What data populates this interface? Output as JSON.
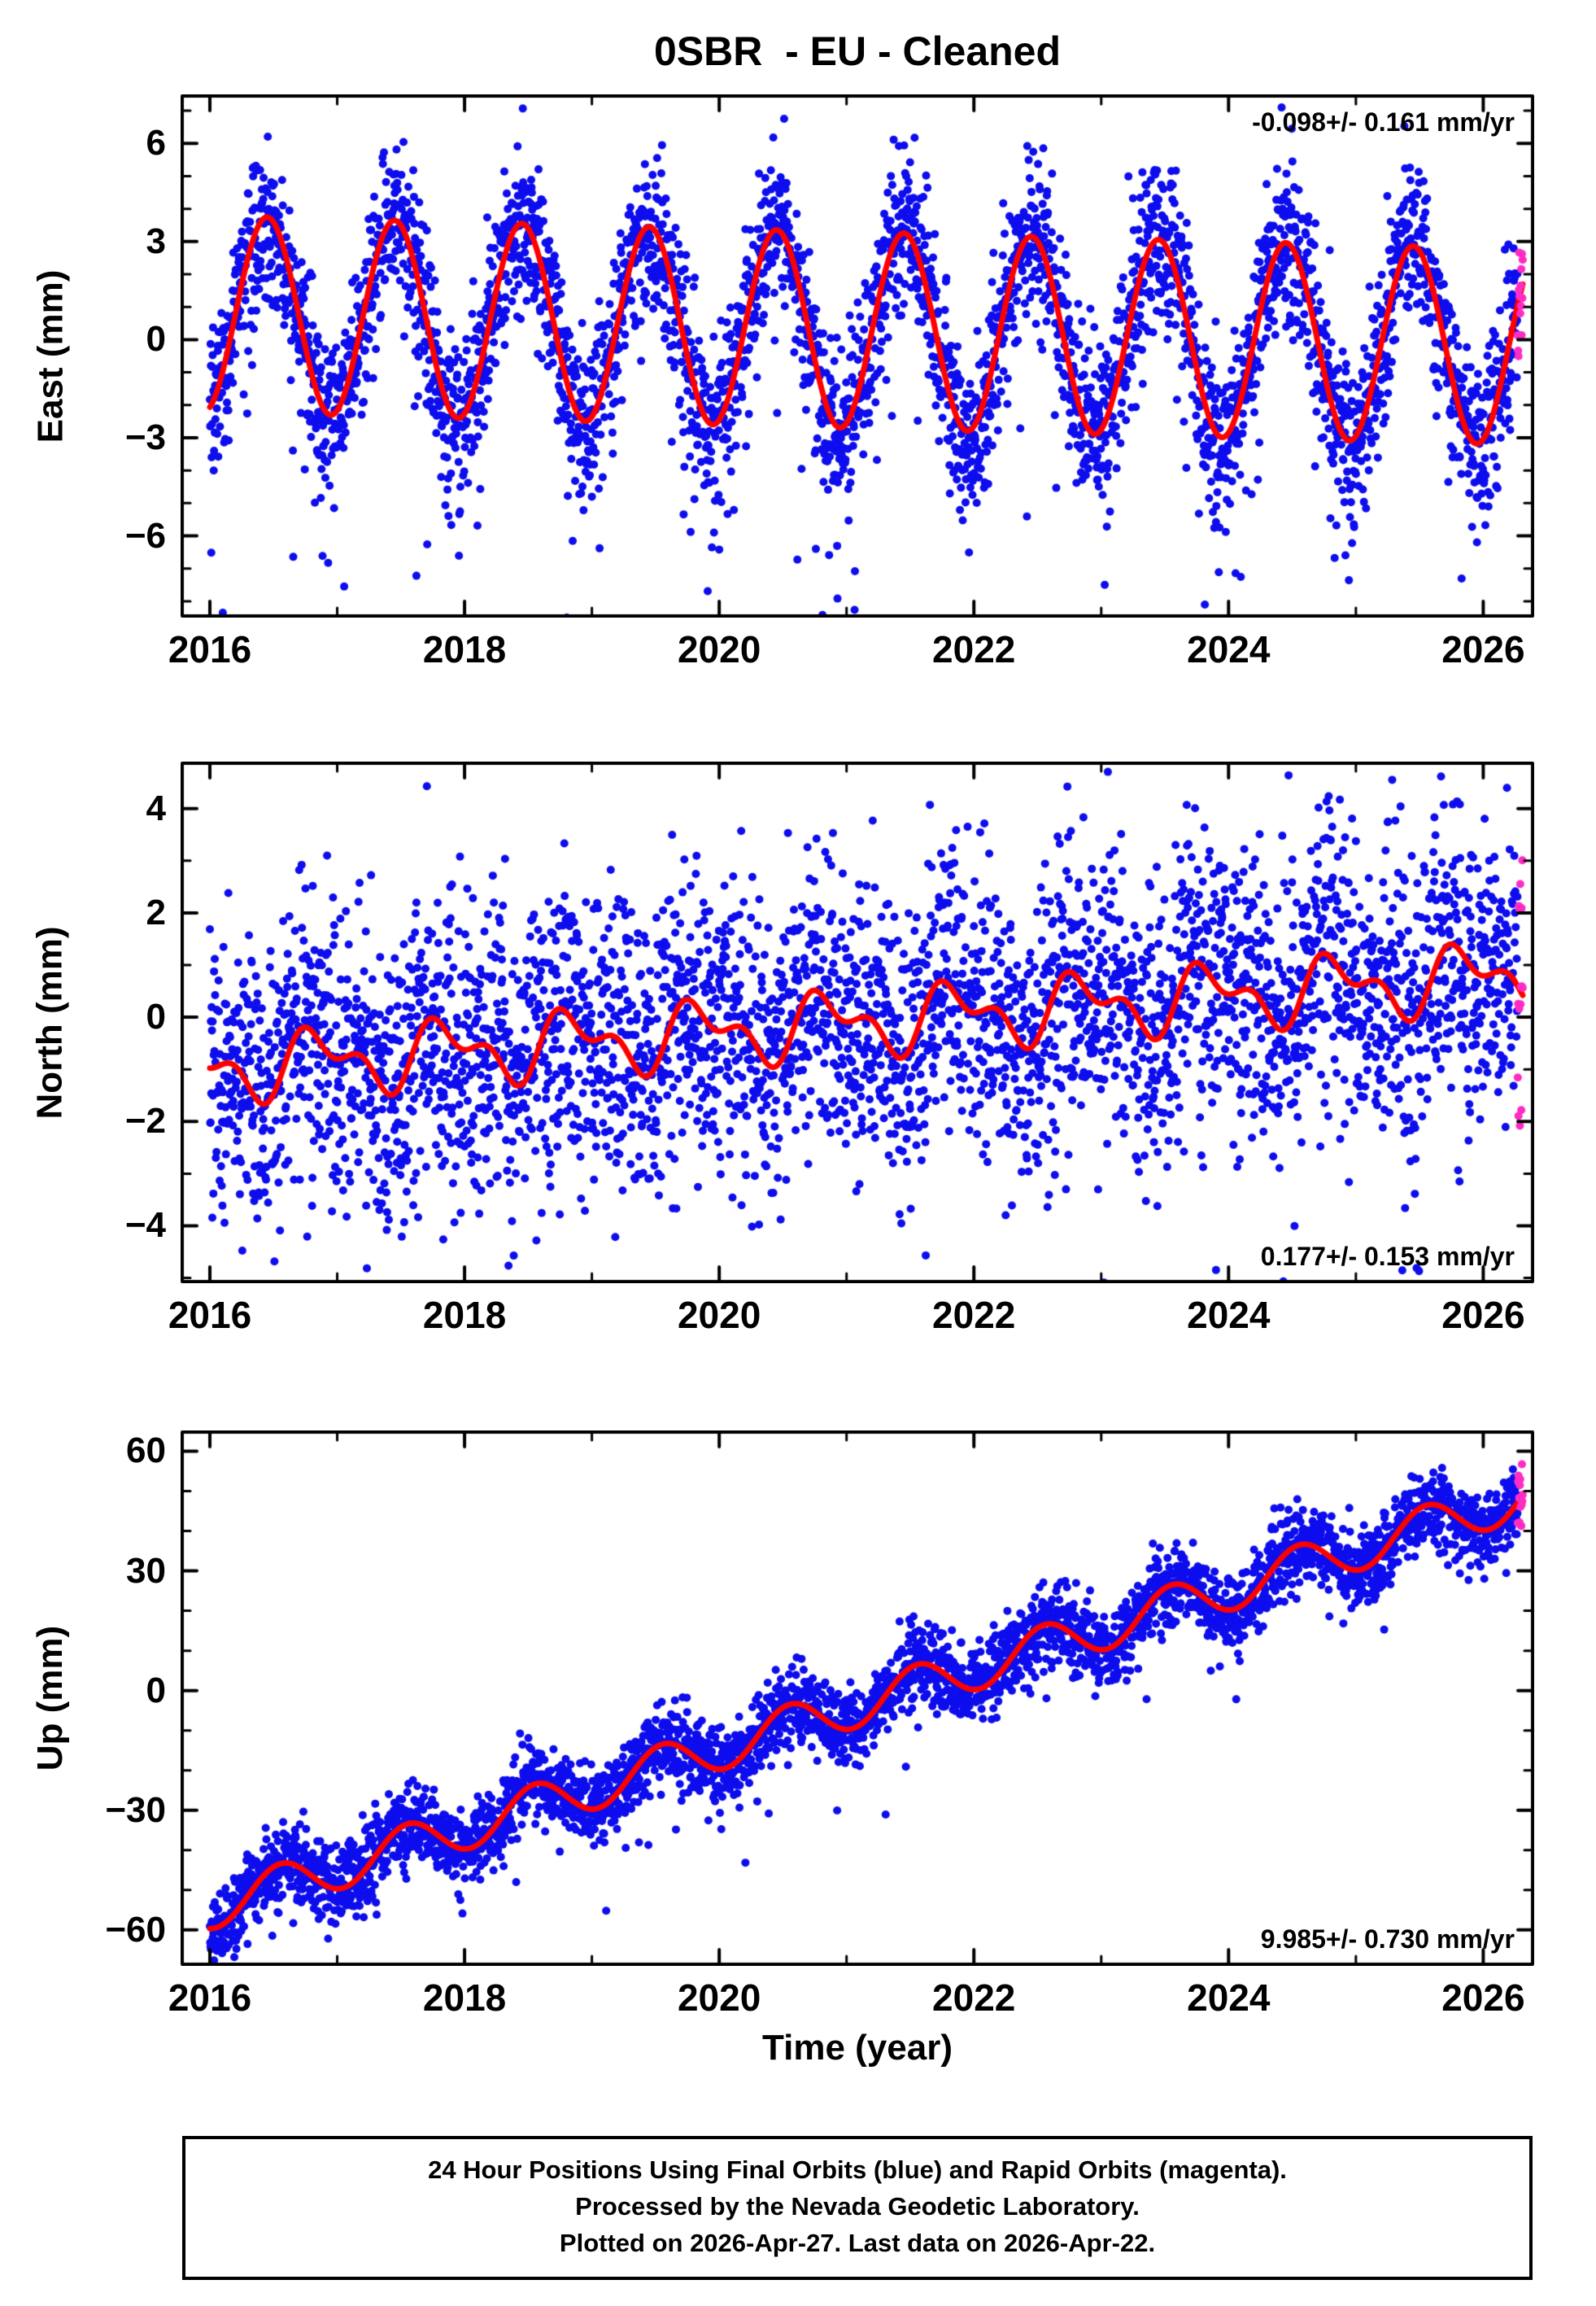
{
  "title": "0SBR  - EU - Cleaned",
  "xlabel": "Time (year)",
  "colors": {
    "final_orbit_blue": "#0d0dee",
    "rapid_orbit_magenta": "#ff2cc3",
    "model_red": "#ff0000",
    "frame_black": "#000000"
  },
  "x_range": [
    2015.77,
    2026.4
  ],
  "x_ticks": [
    2016,
    2018,
    2020,
    2022,
    2024,
    2026
  ],
  "x_tick_minor": 1,
  "sampling": {
    "start": 2016.0,
    "end": 2026.31,
    "rapid_start": 2026.27,
    "samples_per_year": 365
  },
  "chart_data": [
    {
      "type": "scatter",
      "panel": "east",
      "ylabel": "East (mm)",
      "ylim": [
        -8.5,
        7.5
      ],
      "yticks": [
        -6,
        -3,
        0,
        3,
        6
      ],
      "ytick_minor": 1,
      "annotation": "-0.098+/- 0.161 mm/yr",
      "annotation_position": "top-right",
      "trend_mm_per_yr": -0.098,
      "trend_uncertainty_mm_per_yr": 0.161,
      "model": {
        "intercept": 0.3,
        "ref_year": 2021,
        "trend": -0.098,
        "annual_amp": 3.0,
        "annual_phase": 2016.2,
        "semi_amp": 0,
        "semi_phase": 0
      },
      "noise": {
        "sigma": 1.25,
        "outlier_rate": 0.045,
        "outlier_scale": 2.0,
        "outlier_bias": -0.9,
        "winter_tail": 3.0,
        "winter_tail_rate": 0.06
      },
      "seed": 101
    },
    {
      "type": "scatter",
      "panel": "north",
      "ylabel": "North (mm)",
      "ylim": [
        -5.1,
        4.9
      ],
      "yticks": [
        -4,
        -2,
        0,
        2,
        4
      ],
      "ytick_minor": 1,
      "annotation": "0.177+/- 0.153 mm/yr",
      "annotation_position": "bottom-right",
      "trend_mm_per_yr": 0.177,
      "trend_uncertainty_mm_per_yr": 0.153,
      "model": {
        "intercept": -0.115,
        "ref_year": 2021,
        "trend": 0.177,
        "annual_amp": 0.5,
        "annual_phase": 2016.6,
        "semi_amp": 0.32,
        "semi_phase": 2016.08
      },
      "noise": {
        "sigma": 1.35,
        "outlier_rate": 0.05,
        "outlier_scale": 1.7,
        "outlier_bias": -0.2,
        "winter_tail": 0,
        "winter_tail_rate": 0
      },
      "seed": 202
    },
    {
      "type": "scatter",
      "panel": "up",
      "ylabel": "Up (mm)",
      "ylim": [
        -69.0,
        65.2
      ],
      "yticks": [
        -60,
        -30,
        0,
        30,
        60
      ],
      "ytick_minor": 10,
      "annotation": "9.985+/- 0.730 mm/yr",
      "annotation_position": "bottom-right",
      "trend_mm_per_yr": 9.985,
      "trend_uncertainty_mm_per_yr": 0.73,
      "model": {
        "intercept": -4.5,
        "ref_year": 2021,
        "trend": 9.985,
        "annual_amp": 5.5,
        "annual_phase": 2016.3,
        "semi_amp": 0,
        "semi_phase": 0
      },
      "noise": {
        "sigma": 4.8,
        "outlier_rate": 0.03,
        "outlier_scale": 1.8,
        "outlier_bias": -0.5,
        "winter_tail": 0,
        "winter_tail_rate": 0
      },
      "seed": 303
    }
  ],
  "footer": {
    "line1": "24 Hour Positions Using Final Orbits (blue) and Rapid Orbits (magenta).",
    "line2": "Processed by the Nevada Geodetic Laboratory.",
    "line3": "Plotted on 2026-Apr-27. Last data on 2026-Apr-22."
  }
}
